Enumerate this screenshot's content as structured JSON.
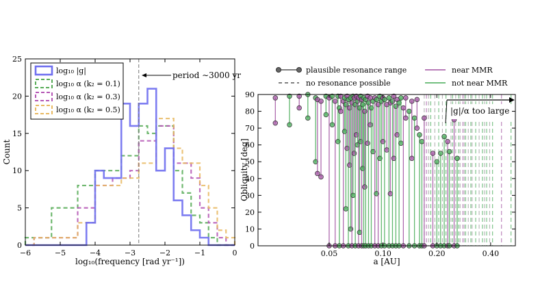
{
  "chart_data": [
    {
      "type": "histogram",
      "xlabel": "log₁₀(frequency [rad yr⁻¹])",
      "ylabel": "Count",
      "xlim": [
        -6,
        0
      ],
      "ylim": [
        0,
        25
      ],
      "xticks": [
        -6,
        -5,
        -4,
        -3,
        -2,
        -1,
        0
      ],
      "xtick_labels": [
        "−6",
        "−5",
        "−4",
        "−3",
        "−2",
        "−1",
        "0"
      ],
      "yticks": [
        0,
        5,
        10,
        15,
        20,
        25
      ],
      "ytick_labels": [
        "0",
        "5",
        "10",
        "15",
        "20",
        "25"
      ],
      "bin_edges": [
        -6.0,
        -5.75,
        -5.5,
        -5.25,
        -5.0,
        -4.75,
        -4.5,
        -4.25,
        -4.0,
        -3.75,
        -3.5,
        -3.25,
        -3.0,
        -2.75,
        -2.5,
        -2.25,
        -2.0,
        -1.75,
        -1.5,
        -1.25,
        -1.0,
        -0.75,
        -0.5,
        -0.25,
        0.0
      ],
      "series": [
        {
          "name": "log₁₀ |g|",
          "color": "#6f6ff0",
          "style": "solid",
          "values": [
            0,
            0,
            0,
            0,
            0,
            0,
            0,
            3,
            10,
            9,
            9,
            19,
            16,
            19,
            21,
            10,
            13,
            6,
            4,
            2,
            1,
            0,
            0,
            0
          ]
        },
        {
          "name": "log₁₀ α (k₂ = 0.1)",
          "color": "#55aa55",
          "style": "dashed",
          "values": [
            1,
            1,
            1,
            5,
            5,
            5,
            8,
            8,
            10,
            10,
            10,
            12,
            12,
            16,
            15,
            16,
            16,
            10,
            7,
            4,
            3,
            1,
            0,
            0
          ]
        },
        {
          "name": "log₁₀ α (k₂ = 0.3)",
          "color": "#b455b4",
          "style": "dashed",
          "values": [
            0,
            1,
            1,
            1,
            1,
            1,
            5,
            5,
            8,
            8,
            9,
            9,
            10,
            14,
            14,
            16,
            16,
            11,
            11,
            9,
            5,
            3,
            1,
            0
          ]
        },
        {
          "name": "log₁₀ α (k₂ = 0.5)",
          "color": "#e8b860",
          "style": "dashed",
          "values": [
            0,
            1,
            1,
            1,
            1,
            1,
            3,
            3,
            8,
            8,
            8,
            9,
            9,
            11,
            11,
            17,
            17,
            13,
            11,
            11,
            8,
            5,
            2,
            1
          ]
        }
      ],
      "vline": {
        "x": -2.75,
        "color": "#777777"
      },
      "annotation": {
        "text": "period ∼3000 yr",
        "arrow_to_x": -2.75,
        "y": 23.2
      }
    },
    {
      "type": "scatter",
      "xlabel": "a [AU]",
      "ylabel": "Obliquity [deg]",
      "xscale": "log",
      "xlim": [
        0.02,
        0.55
      ],
      "ylim": [
        0,
        90
      ],
      "xticks": [
        0.05,
        0.1,
        0.2,
        0.4
      ],
      "xtick_labels": [
        "0.05",
        "0.10",
        "0.20",
        "0.40"
      ],
      "yticks": [
        0,
        10,
        20,
        30,
        40,
        50,
        60,
        70,
        80,
        90
      ],
      "ytick_labels": [
        "0",
        "10",
        "20",
        "30",
        "40",
        "50",
        "60",
        "70",
        "80",
        "90"
      ],
      "colors": {
        "near_mmr": "#a050a0",
        "not_near_mmr": "#44aa55",
        "no_res_gray": "#999999",
        "marker_edge": "#333333"
      },
      "legend": {
        "plausible": "plausible resonance range",
        "no_resonance": "no resonance possible",
        "near_mmr": "near MMR",
        "not_near_mmr": "not near MMR"
      },
      "annotation": {
        "text": "|g|/α too large"
      },
      "plausible_ranges": [
        {
          "a": 0.025,
          "low": 73,
          "high": 88,
          "group": "near"
        },
        {
          "a": 0.03,
          "low": 72,
          "high": 89,
          "group": "not"
        },
        {
          "a": 0.034,
          "low": 82,
          "high": 89,
          "group": "near"
        },
        {
          "a": 0.038,
          "low": 76,
          "high": 90,
          "group": "not"
        },
        {
          "a": 0.042,
          "low": 50,
          "high": 88,
          "group": "not"
        },
        {
          "a": 0.043,
          "low": 43,
          "high": 87,
          "group": "near"
        },
        {
          "a": 0.045,
          "low": 41,
          "high": 86,
          "group": "near"
        },
        {
          "a": 0.048,
          "low": 78,
          "high": 89,
          "group": "not"
        },
        {
          "a": 0.05,
          "low": 0,
          "high": 88,
          "group": "near"
        },
        {
          "a": 0.052,
          "low": 72,
          "high": 89,
          "group": "not"
        },
        {
          "a": 0.054,
          "low": 0,
          "high": 86,
          "group": "near"
        },
        {
          "a": 0.056,
          "low": 62,
          "high": 89,
          "group": "not"
        },
        {
          "a": 0.057,
          "low": 0,
          "high": 82,
          "group": "not"
        },
        {
          "a": 0.058,
          "low": 80,
          "high": 89,
          "group": "near"
        },
        {
          "a": 0.06,
          "low": 0,
          "high": 86,
          "group": "near"
        },
        {
          "a": 0.061,
          "low": 68,
          "high": 88,
          "group": "not"
        },
        {
          "a": 0.062,
          "low": 22,
          "high": 84,
          "group": "not"
        },
        {
          "a": 0.063,
          "low": 58,
          "high": 89,
          "group": "near"
        },
        {
          "a": 0.064,
          "low": 0,
          "high": 87,
          "group": "not"
        },
        {
          "a": 0.065,
          "low": 48,
          "high": 82,
          "group": "near"
        },
        {
          "a": 0.066,
          "low": 10,
          "high": 88,
          "group": "not"
        },
        {
          "a": 0.067,
          "low": 0,
          "high": 85,
          "group": "near"
        },
        {
          "a": 0.068,
          "low": 30,
          "high": 89,
          "group": "not"
        },
        {
          "a": 0.069,
          "low": 55,
          "high": 88,
          "group": "near"
        },
        {
          "a": 0.07,
          "low": 0,
          "high": 84,
          "group": "not"
        },
        {
          "a": 0.071,
          "low": 66,
          "high": 89,
          "group": "near"
        },
        {
          "a": 0.072,
          "low": 60,
          "high": 86,
          "group": "not"
        },
        {
          "a": 0.073,
          "low": 0,
          "high": 88,
          "group": "near"
        },
        {
          "a": 0.074,
          "low": 8,
          "high": 82,
          "group": "not"
        },
        {
          "a": 0.075,
          "low": 62,
          "high": 89,
          "group": "not"
        },
        {
          "a": 0.076,
          "low": 0,
          "high": 87,
          "group": "near"
        },
        {
          "a": 0.077,
          "low": 46,
          "high": 84,
          "group": "not"
        },
        {
          "a": 0.078,
          "low": 0,
          "high": 88,
          "group": "not"
        },
        {
          "a": 0.079,
          "low": 35,
          "high": 80,
          "group": "near"
        },
        {
          "a": 0.08,
          "low": 0,
          "high": 87,
          "group": "not"
        },
        {
          "a": 0.082,
          "low": 61,
          "high": 89,
          "group": "near"
        },
        {
          "a": 0.083,
          "low": 0,
          "high": 85,
          "group": "not"
        },
        {
          "a": 0.085,
          "low": 72,
          "high": 88,
          "group": "near"
        },
        {
          "a": 0.086,
          "low": 0,
          "high": 82,
          "group": "not"
        },
        {
          "a": 0.088,
          "low": 56,
          "high": 86,
          "group": "not"
        },
        {
          "a": 0.09,
          "low": 0,
          "high": 88,
          "group": "near"
        },
        {
          "a": 0.092,
          "low": 31,
          "high": 87,
          "group": "not"
        },
        {
          "a": 0.094,
          "low": 0,
          "high": 84,
          "group": "near"
        },
        {
          "a": 0.096,
          "low": 52,
          "high": 89,
          "group": "not"
        },
        {
          "a": 0.098,
          "low": 0,
          "high": 86,
          "group": "not"
        },
        {
          "a": 0.1,
          "low": 62,
          "high": 88,
          "group": "near"
        },
        {
          "a": 0.102,
          "low": 0,
          "high": 87,
          "group": "not"
        },
        {
          "a": 0.105,
          "low": 57,
          "high": 84,
          "group": "near"
        },
        {
          "a": 0.108,
          "low": 0,
          "high": 88,
          "group": "not"
        },
        {
          "a": 0.11,
          "low": 31,
          "high": 85,
          "group": "near"
        },
        {
          "a": 0.113,
          "low": 0,
          "high": 86,
          "group": "not"
        },
        {
          "a": 0.115,
          "low": 52,
          "high": 89,
          "group": "near"
        },
        {
          "a": 0.118,
          "low": 0,
          "high": 83,
          "group": "not"
        },
        {
          "a": 0.12,
          "low": 66,
          "high": 87,
          "group": "near"
        },
        {
          "a": 0.123,
          "low": 0,
          "high": 85,
          "group": "not"
        },
        {
          "a": 0.126,
          "low": 61,
          "high": 88,
          "group": "not"
        },
        {
          "a": 0.13,
          "low": 0,
          "high": 82,
          "group": "near"
        },
        {
          "a": 0.134,
          "low": 76,
          "high": 88,
          "group": "near"
        },
        {
          "a": 0.14,
          "low": 0,
          "high": 80,
          "group": "not"
        },
        {
          "a": 0.145,
          "low": 52,
          "high": 86,
          "group": "near"
        },
        {
          "a": 0.15,
          "low": 0,
          "high": 76,
          "group": "not"
        },
        {
          "a": 0.155,
          "low": 70,
          "high": 87,
          "group": "near"
        },
        {
          "a": 0.16,
          "low": 0,
          "high": 66,
          "group": "not"
        },
        {
          "a": 0.165,
          "low": 0,
          "high": 62,
          "group": "not"
        },
        {
          "a": 0.17,
          "low": 0,
          "high": 76,
          "group": "near"
        },
        {
          "a": 0.19,
          "low": 0,
          "high": 55,
          "group": "near"
        },
        {
          "a": 0.2,
          "low": 0,
          "high": 50,
          "group": "not"
        },
        {
          "a": 0.21,
          "low": 0,
          "high": 55,
          "group": "not"
        },
        {
          "a": 0.22,
          "low": 0,
          "high": 65,
          "group": "not"
        },
        {
          "a": 0.23,
          "low": 0,
          "high": 62,
          "group": "near"
        },
        {
          "a": 0.235,
          "low": 0,
          "high": 56,
          "group": "not"
        },
        {
          "a": 0.25,
          "low": 0,
          "high": 75,
          "group": "near"
        },
        {
          "a": 0.26,
          "low": 0,
          "high": 52,
          "group": "not"
        }
      ],
      "no_resonance": [
        {
          "a": 0.17,
          "group": "gray"
        },
        {
          "a": 0.175,
          "group": "near"
        },
        {
          "a": 0.18,
          "group": "gray"
        },
        {
          "a": 0.185,
          "group": "not"
        },
        {
          "a": 0.195,
          "group": "gray"
        },
        {
          "a": 0.205,
          "group": "not"
        },
        {
          "a": 0.215,
          "group": "gray"
        },
        {
          "a": 0.225,
          "group": "not"
        },
        {
          "a": 0.24,
          "group": "gray"
        },
        {
          "a": 0.245,
          "group": "not"
        },
        {
          "a": 0.255,
          "group": "gray"
        },
        {
          "a": 0.265,
          "group": "not"
        },
        {
          "a": 0.27,
          "group": "gray"
        },
        {
          "a": 0.28,
          "group": "near"
        },
        {
          "a": 0.285,
          "group": "gray"
        },
        {
          "a": 0.29,
          "group": "not"
        },
        {
          "a": 0.3,
          "group": "gray"
        },
        {
          "a": 0.31,
          "group": "not"
        },
        {
          "a": 0.315,
          "group": "gray"
        },
        {
          "a": 0.33,
          "group": "not"
        },
        {
          "a": 0.345,
          "group": "gray"
        },
        {
          "a": 0.36,
          "group": "not"
        },
        {
          "a": 0.37,
          "group": "gray"
        },
        {
          "a": 0.38,
          "group": "not"
        },
        {
          "a": 0.395,
          "group": "gray"
        },
        {
          "a": 0.41,
          "group": "not"
        },
        {
          "a": 0.46,
          "group": "near"
        },
        {
          "a": 0.52,
          "group": "not"
        }
      ]
    }
  ]
}
